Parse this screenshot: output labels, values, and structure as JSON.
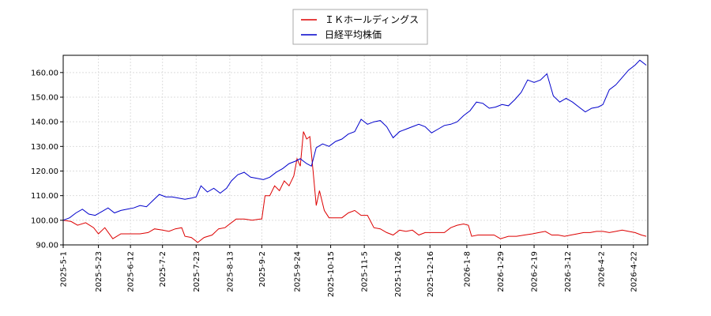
{
  "chart_data": {
    "type": "line",
    "title": "",
    "xlabel": "",
    "ylabel": "",
    "ylim": [
      90,
      167
    ],
    "xlim": [
      "2025-05-01",
      "2026-05-01"
    ],
    "grid": true,
    "legend_position": "top-center",
    "y_ticks": [
      90,
      100,
      110,
      120,
      130,
      140,
      150,
      160
    ],
    "y_tick_labels": [
      "90.00",
      "100.00",
      "110.00",
      "120.00",
      "130.00",
      "140.00",
      "150.00",
      "160.00"
    ],
    "x_ticks": [
      "2025-05-01",
      "2025-05-23",
      "2025-06-12",
      "2025-07-02",
      "2025-07-23",
      "2025-08-13",
      "2025-09-02",
      "2025-09-24",
      "2025-10-15",
      "2025-11-05",
      "2025-11-26",
      "2025-12-16",
      "2026-01-08",
      "2026-01-29",
      "2026-02-19",
      "2026-03-12",
      "2026-04-02",
      "2026-04-22"
    ],
    "x_tick_labels": [
      "2025-5-1",
      "2025-5-23",
      "2025-6-12",
      "2025-7-2",
      "2025-7-23",
      "2025-8-13",
      "2025-9-2",
      "2025-9-24",
      "2025-10-15",
      "2025-11-5",
      "2025-11-26",
      "2025-12-16",
      "2026-1-8",
      "2026-1-29",
      "2026-2-19",
      "2026-3-12",
      "2026-4-2",
      "2026-4-22"
    ],
    "series": [
      {
        "name": "ＩＫホールディングス",
        "color": "#dd0000",
        "points": [
          [
            "2025-05-01",
            100
          ],
          [
            "2025-05-06",
            99.5
          ],
          [
            "2025-05-10",
            98
          ],
          [
            "2025-05-15",
            99
          ],
          [
            "2025-05-20",
            97
          ],
          [
            "2025-05-23",
            94.5
          ],
          [
            "2025-05-27",
            97
          ],
          [
            "2025-06-01",
            92.5
          ],
          [
            "2025-06-06",
            94.5
          ],
          [
            "2025-06-12",
            94.5
          ],
          [
            "2025-06-18",
            94.5
          ],
          [
            "2025-06-23",
            95
          ],
          [
            "2025-06-27",
            96.5
          ],
          [
            "2025-07-02",
            96
          ],
          [
            "2025-07-06",
            95.5
          ],
          [
            "2025-07-10",
            96.5
          ],
          [
            "2025-07-14",
            97
          ],
          [
            "2025-07-16",
            93.5
          ],
          [
            "2025-07-20",
            93
          ],
          [
            "2025-07-24",
            91
          ],
          [
            "2025-07-28",
            93
          ],
          [
            "2025-08-02",
            94
          ],
          [
            "2025-08-06",
            96.5
          ],
          [
            "2025-08-10",
            97
          ],
          [
            "2025-08-13",
            98.5
          ],
          [
            "2025-08-17",
            100.5
          ],
          [
            "2025-08-22",
            100.5
          ],
          [
            "2025-08-27",
            100
          ],
          [
            "2025-09-01",
            100.5
          ],
          [
            "2025-09-02",
            100.5
          ],
          [
            "2025-09-04",
            110
          ],
          [
            "2025-09-07",
            110
          ],
          [
            "2025-09-10",
            114
          ],
          [
            "2025-09-13",
            112
          ],
          [
            "2025-09-16",
            116
          ],
          [
            "2025-09-19",
            114
          ],
          [
            "2025-09-22",
            118
          ],
          [
            "2025-09-24",
            125
          ],
          [
            "2025-09-26",
            122
          ],
          [
            "2025-09-28",
            136
          ],
          [
            "2025-09-30",
            133
          ],
          [
            "2025-10-02",
            134
          ],
          [
            "2025-10-04",
            120
          ],
          [
            "2025-10-06",
            106
          ],
          [
            "2025-10-08",
            112
          ],
          [
            "2025-10-11",
            104
          ],
          [
            "2025-10-14",
            101
          ],
          [
            "2025-10-18",
            101
          ],
          [
            "2025-10-22",
            101
          ],
          [
            "2025-10-26",
            103
          ],
          [
            "2025-10-30",
            104
          ],
          [
            "2025-11-03",
            102
          ],
          [
            "2025-11-07",
            102
          ],
          [
            "2025-11-11",
            97
          ],
          [
            "2025-11-15",
            96.5
          ],
          [
            "2025-11-19",
            95
          ],
          [
            "2025-11-23",
            94
          ],
          [
            "2025-11-27",
            96
          ],
          [
            "2025-12-01",
            95.5
          ],
          [
            "2025-12-05",
            96
          ],
          [
            "2025-12-09",
            94
          ],
          [
            "2025-12-13",
            95
          ],
          [
            "2025-12-17",
            95
          ],
          [
            "2025-12-21",
            95
          ],
          [
            "2025-12-25",
            95
          ],
          [
            "2025-12-29",
            97
          ],
          [
            "2026-01-02",
            98
          ],
          [
            "2026-01-06",
            98.5
          ],
          [
            "2026-01-09",
            98
          ],
          [
            "2026-01-11",
            93.5
          ],
          [
            "2026-01-15",
            94
          ],
          [
            "2026-01-20",
            94
          ],
          [
            "2026-01-25",
            94
          ],
          [
            "2026-01-29",
            92.5
          ],
          [
            "2026-02-03",
            93.5
          ],
          [
            "2026-02-08",
            93.5
          ],
          [
            "2026-02-13",
            94
          ],
          [
            "2026-02-18",
            94.5
          ],
          [
            "2026-02-22",
            95
          ],
          [
            "2026-02-26",
            95.5
          ],
          [
            "2026-03-02",
            94
          ],
          [
            "2026-03-06",
            94
          ],
          [
            "2026-03-10",
            93.5
          ],
          [
            "2026-03-14",
            94
          ],
          [
            "2026-03-18",
            94.5
          ],
          [
            "2026-03-22",
            95
          ],
          [
            "2026-03-26",
            95
          ],
          [
            "2026-03-30",
            95.5
          ],
          [
            "2026-04-03",
            95.5
          ],
          [
            "2026-04-07",
            95
          ],
          [
            "2026-04-11",
            95.5
          ],
          [
            "2026-04-15",
            96
          ],
          [
            "2026-04-19",
            95.5
          ],
          [
            "2026-04-23",
            95
          ],
          [
            "2026-04-27",
            94
          ],
          [
            "2026-04-30",
            93.5
          ]
        ]
      },
      {
        "name": "日経平均株価",
        "color": "#0000cc",
        "points": [
          [
            "2025-05-01",
            100
          ],
          [
            "2025-05-05",
            101
          ],
          [
            "2025-05-09",
            103
          ],
          [
            "2025-05-13",
            104.5
          ],
          [
            "2025-05-17",
            102.5
          ],
          [
            "2025-05-21",
            102
          ],
          [
            "2025-05-25",
            103.5
          ],
          [
            "2025-05-29",
            105
          ],
          [
            "2025-06-02",
            103
          ],
          [
            "2025-06-06",
            104
          ],
          [
            "2025-06-10",
            104.5
          ],
          [
            "2025-06-14",
            105
          ],
          [
            "2025-06-18",
            106
          ],
          [
            "2025-06-22",
            105.5
          ],
          [
            "2025-06-26",
            108
          ],
          [
            "2025-06-30",
            110.5
          ],
          [
            "2025-07-04",
            109.5
          ],
          [
            "2025-07-08",
            109.5
          ],
          [
            "2025-07-12",
            109
          ],
          [
            "2025-07-16",
            108.5
          ],
          [
            "2025-07-20",
            109
          ],
          [
            "2025-07-23",
            109.5
          ],
          [
            "2025-07-26",
            114
          ],
          [
            "2025-07-30",
            111.5
          ],
          [
            "2025-08-03",
            113
          ],
          [
            "2025-08-07",
            111
          ],
          [
            "2025-08-11",
            113
          ],
          [
            "2025-08-14",
            116
          ],
          [
            "2025-08-18",
            118.5
          ],
          [
            "2025-08-22",
            119.5
          ],
          [
            "2025-08-26",
            117.5
          ],
          [
            "2025-08-30",
            117
          ],
          [
            "2025-09-03",
            116.5
          ],
          [
            "2025-09-07",
            117.5
          ],
          [
            "2025-09-11",
            119.5
          ],
          [
            "2025-09-15",
            121
          ],
          [
            "2025-09-19",
            123
          ],
          [
            "2025-09-23",
            124
          ],
          [
            "2025-09-26",
            125
          ],
          [
            "2025-09-30",
            123
          ],
          [
            "2025-10-03",
            122
          ],
          [
            "2025-10-06",
            129.5
          ],
          [
            "2025-10-10",
            131
          ],
          [
            "2025-10-14",
            130
          ],
          [
            "2025-10-18",
            132
          ],
          [
            "2025-10-22",
            133
          ],
          [
            "2025-10-26",
            135
          ],
          [
            "2025-10-30",
            136
          ],
          [
            "2025-11-03",
            141
          ],
          [
            "2025-11-07",
            139
          ],
          [
            "2025-11-11",
            140
          ],
          [
            "2025-11-15",
            140.5
          ],
          [
            "2025-11-19",
            138
          ],
          [
            "2025-11-23",
            133.5
          ],
          [
            "2025-11-27",
            136
          ],
          [
            "2025-12-01",
            137
          ],
          [
            "2025-12-05",
            138
          ],
          [
            "2025-12-09",
            139
          ],
          [
            "2025-12-13",
            138
          ],
          [
            "2025-12-17",
            135.5
          ],
          [
            "2025-12-21",
            137
          ],
          [
            "2025-12-25",
            138.5
          ],
          [
            "2025-12-29",
            139
          ],
          [
            "2026-01-02",
            140
          ],
          [
            "2026-01-06",
            142.5
          ],
          [
            "2026-01-10",
            144.5
          ],
          [
            "2026-01-14",
            148
          ],
          [
            "2026-01-18",
            147.5
          ],
          [
            "2026-01-22",
            145.5
          ],
          [
            "2026-01-26",
            146
          ],
          [
            "2026-01-30",
            147
          ],
          [
            "2026-02-03",
            146.5
          ],
          [
            "2026-02-07",
            149
          ],
          [
            "2026-02-11",
            152
          ],
          [
            "2026-02-15",
            157
          ],
          [
            "2026-02-19",
            156
          ],
          [
            "2026-02-23",
            157
          ],
          [
            "2026-02-27",
            159.5
          ],
          [
            "2026-03-03",
            150.5
          ],
          [
            "2026-03-07",
            148
          ],
          [
            "2026-03-11",
            149.5
          ],
          [
            "2026-03-15",
            148
          ],
          [
            "2026-03-19",
            146
          ],
          [
            "2026-03-23",
            144
          ],
          [
            "2026-03-27",
            145.5
          ],
          [
            "2026-03-31",
            146
          ],
          [
            "2026-04-03",
            147
          ],
          [
            "2026-04-07",
            153
          ],
          [
            "2026-04-11",
            155
          ],
          [
            "2026-04-15",
            158
          ],
          [
            "2026-04-19",
            161
          ],
          [
            "2026-04-23",
            163
          ],
          [
            "2026-04-26",
            165
          ],
          [
            "2026-04-30",
            163
          ]
        ]
      }
    ]
  }
}
